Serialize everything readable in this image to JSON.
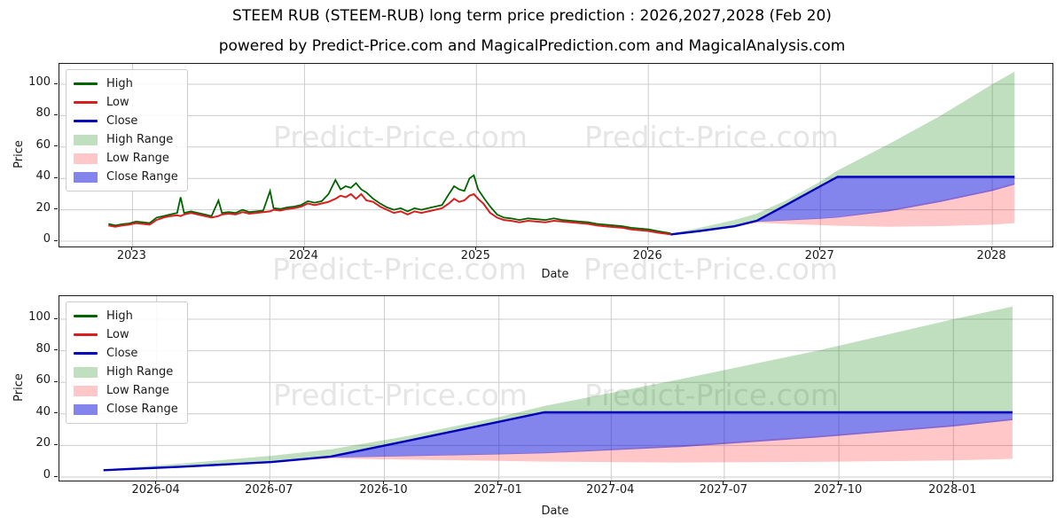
{
  "header": {
    "title": "STEEM RUB (STEEM-RUB) long term price prediction : 2026,2027,2028 (Feb 20)",
    "subtitle": "powered by Predict-Price.com and MagicalPrediction.com and MagicalAnalysis.com"
  },
  "watermark": {
    "text": "Predict-Price.com"
  },
  "colors": {
    "high_line": "#006400",
    "low_line": "#d62020",
    "close_line": "#0000bb",
    "high_range_fill": "rgba(0,128,0,0.25)",
    "low_range_fill": "rgba(255,20,20,0.24)",
    "close_range_fill": "rgba(10,10,220,0.5)",
    "grid": "#cccccc",
    "spine": "#1a1a1a",
    "watermark_gray": "#e3e3e3"
  },
  "legend": {
    "items": [
      {
        "label": "High",
        "type": "line",
        "color_key": "high_line"
      },
      {
        "label": "Low",
        "type": "line",
        "color_key": "low_line"
      },
      {
        "label": "Close",
        "type": "line",
        "color_key": "close_line"
      },
      {
        "label": "High Range",
        "type": "patch",
        "color_key": "high_range_fill"
      },
      {
        "label": "Low Range",
        "type": "patch",
        "color_key": "low_range_fill"
      },
      {
        "label": "Close Range",
        "type": "patch",
        "color_key": "close_range_fill"
      }
    ]
  },
  "chart_data": [
    {
      "type": "line",
      "title": "",
      "xlabel": "Date",
      "ylabel": "Price",
      "xlim": [
        2022.575,
        2028.35
      ],
      "ylim": [
        -3.4,
        113
      ],
      "grid": true,
      "legend_position": "upper left",
      "x_ticks": {
        "values": [
          2023,
          2024,
          2025,
          2026,
          2027,
          2028
        ],
        "labels": [
          "2023",
          "2024",
          "2025",
          "2026",
          "2027",
          "2028"
        ]
      },
      "y_ticks": [
        0,
        20,
        40,
        60,
        80,
        100
      ],
      "series": {
        "history": {
          "x": [
            2022.86,
            2022.9,
            2022.94,
            2022.98,
            2023.02,
            2023.06,
            2023.1,
            2023.14,
            2023.18,
            2023.22,
            2023.26,
            2023.28,
            2023.3,
            2023.34,
            2023.38,
            2023.42,
            2023.46,
            2023.5,
            2023.52,
            2023.56,
            2023.6,
            2023.64,
            2023.68,
            2023.72,
            2023.76,
            2023.8,
            2023.82,
            2023.86,
            2023.9,
            2023.94,
            2023.98,
            2024.02,
            2024.06,
            2024.1,
            2024.14,
            2024.18,
            2024.21,
            2024.24,
            2024.27,
            2024.3,
            2024.33,
            2024.36,
            2024.4,
            2024.44,
            2024.48,
            2024.52,
            2024.56,
            2024.6,
            2024.64,
            2024.68,
            2024.72,
            2024.76,
            2024.8,
            2024.84,
            2024.87,
            2024.9,
            2024.93,
            2024.96,
            2024.985,
            2025.01,
            2025.04,
            2025.08,
            2025.12,
            2025.16,
            2025.2,
            2025.25,
            2025.3,
            2025.35,
            2025.4,
            2025.45,
            2025.5,
            2025.55,
            2025.6,
            2025.65,
            2025.7,
            2025.75,
            2025.8,
            2025.85,
            2025.9,
            2025.95,
            2026.0,
            2026.05,
            2026.1,
            2026.13
          ],
          "low": [
            10,
            9.2,
            10,
            10.5,
            11.5,
            11,
            10.5,
            13.5,
            15,
            16,
            16.5,
            16,
            17,
            18,
            17,
            16,
            15,
            16,
            17,
            17.5,
            17,
            18.5,
            17.5,
            18,
            18.5,
            19,
            20,
            19.5,
            20.5,
            21,
            22,
            24,
            23,
            24,
            25,
            27,
            29,
            28,
            30,
            27,
            30,
            26,
            25,
            22,
            20,
            18,
            19,
            17,
            19,
            18,
            19,
            20,
            21,
            24,
            27,
            25,
            26,
            29,
            30,
            27,
            24,
            18,
            15,
            13.5,
            13,
            12,
            13,
            12.5,
            12,
            13,
            12.5,
            12,
            11.5,
            11,
            10,
            9.5,
            9,
            8.5,
            7.5,
            7,
            6.5,
            5.5,
            4.8,
            4.3
          ],
          "high": [
            11,
            10,
            10.8,
            11.3,
            12.5,
            12,
            11.5,
            15,
            16,
            17,
            18,
            28,
            18,
            19,
            18,
            17,
            16,
            26,
            18,
            18.5,
            18,
            20,
            18.5,
            19,
            19.5,
            32,
            21,
            20.5,
            21.5,
            22,
            23,
            25.5,
            24.5,
            25.5,
            30,
            39,
            33,
            35,
            34,
            37,
            33,
            31,
            27,
            24,
            21.5,
            20,
            21,
            19,
            21,
            20,
            21,
            22,
            23,
            30,
            35,
            33,
            32,
            40,
            42,
            33,
            28,
            22,
            17,
            15,
            14.5,
            13.5,
            14.5,
            14,
            13.5,
            14.5,
            13.5,
            13,
            12.5,
            12,
            11,
            10.5,
            10,
            9.5,
            8.5,
            8,
            7.5,
            6.5,
            5.5,
            5
          ]
        },
        "prediction": {
          "x": [
            2026.13,
            2026.3,
            2026.5,
            2026.63,
            2026.8,
            2027.0,
            2027.1,
            2027.4,
            2027.7,
            2028.0,
            2028.13
          ],
          "close": [
            4.3,
            6.5,
            9.5,
            13,
            23,
            35,
            41,
            41,
            41,
            41,
            41
          ],
          "high_max": [
            4.8,
            8.5,
            13.5,
            17.5,
            26,
            38,
            45,
            62,
            80,
            100,
            108
          ],
          "close_min": [
            4.3,
            6.3,
            9.2,
            12.3,
            13.2,
            14.3,
            15,
            19,
            25,
            32,
            36
          ],
          "low_max": [
            4.3,
            6.4,
            9.4,
            12.5,
            13.6,
            14.7,
            15.5,
            20,
            26,
            33,
            37
          ],
          "low_min": [
            4.0,
            6.0,
            9.0,
            11.8,
            11.0,
            10.2,
            9.8,
            9.2,
            9.6,
            10.5,
            11.5
          ]
        }
      }
    },
    {
      "type": "line",
      "title": "",
      "xlabel": "Date",
      "ylabel": "Price",
      "xlim": [
        2026.033,
        2028.218
      ],
      "ylim": [
        -2.25,
        114.6
      ],
      "grid": true,
      "legend_position": "upper left",
      "x_ticks": {
        "values": [
          2026.247,
          2026.496,
          2026.748,
          2027.0,
          2027.247,
          2027.496,
          2027.748,
          2028.0
        ],
        "labels": [
          "2026-04",
          "2026-07",
          "2026-10",
          "2027-01",
          "2027-04",
          "2027-07",
          "2027-10",
          "2028-01"
        ]
      },
      "y_ticks": [
        0,
        20,
        40,
        60,
        80,
        100
      ],
      "series": {
        "prediction": {
          "x": [
            2026.13,
            2026.3,
            2026.5,
            2026.63,
            2026.8,
            2027.0,
            2027.1,
            2027.4,
            2027.7,
            2028.0,
            2028.13
          ],
          "close": [
            4.3,
            6.5,
            9.5,
            13,
            23,
            35,
            41,
            41,
            41,
            41,
            41
          ],
          "high_max": [
            4.8,
            8.5,
            13.5,
            17.5,
            26,
            38,
            45,
            62,
            80,
            100,
            108
          ],
          "close_min": [
            4.3,
            6.3,
            9.2,
            12.3,
            13.2,
            14.3,
            15,
            19,
            25,
            32,
            36
          ],
          "low_max": [
            4.3,
            6.4,
            9.4,
            12.5,
            13.6,
            14.7,
            15.5,
            20,
            26,
            33,
            37
          ],
          "low_min": [
            4.0,
            6.0,
            9.0,
            11.8,
            11.0,
            10.2,
            9.8,
            9.2,
            9.6,
            10.5,
            11.5
          ]
        }
      }
    }
  ]
}
